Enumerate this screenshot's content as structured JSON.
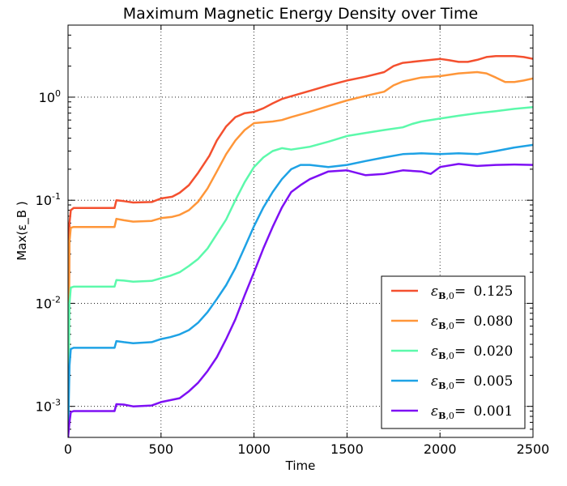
{
  "chart_data": {
    "type": "line",
    "title": "Maximum Magnetic Energy Density over Time",
    "xlabel": "Time",
    "ylabel": "Max(ε_B )",
    "y_scale": "log",
    "xlim": [
      0,
      2500
    ],
    "ylim": [
      0.0005,
      5
    ],
    "grid": true,
    "legend_position": "lower-right",
    "x_ticks": [
      {
        "value": 0,
        "label": "0"
      },
      {
        "value": 500,
        "label": "500"
      },
      {
        "value": 1000,
        "label": "1000"
      },
      {
        "value": 1500,
        "label": "1500"
      },
      {
        "value": 2000,
        "label": "2000"
      },
      {
        "value": 2500,
        "label": "2500"
      }
    ],
    "y_ticks": [
      {
        "value": 0.001,
        "base": "10",
        "exp": "-3"
      },
      {
        "value": 0.01,
        "base": "10",
        "exp": "-2"
      },
      {
        "value": 0.1,
        "base": "10",
        "exp": "-1"
      },
      {
        "value": 1,
        "base": "10",
        "exp": "0"
      }
    ],
    "series": [
      {
        "name": "ε_B,0 = 0.125",
        "legend_value": "0.125",
        "color": "#f4502f",
        "points": [
          [
            0,
            0.0005
          ],
          [
            8,
            0.06
          ],
          [
            15,
            0.08
          ],
          [
            30,
            0.084
          ],
          [
            100,
            0.084
          ],
          [
            250,
            0.084
          ],
          [
            260,
            0.1
          ],
          [
            300,
            0.098
          ],
          [
            350,
            0.095
          ],
          [
            450,
            0.096
          ],
          [
            500,
            0.104
          ],
          [
            560,
            0.108
          ],
          [
            600,
            0.118
          ],
          [
            650,
            0.14
          ],
          [
            700,
            0.185
          ],
          [
            760,
            0.27
          ],
          [
            800,
            0.38
          ],
          [
            850,
            0.52
          ],
          [
            900,
            0.64
          ],
          [
            950,
            0.7
          ],
          [
            1000,
            0.72
          ],
          [
            1050,
            0.78
          ],
          [
            1100,
            0.87
          ],
          [
            1150,
            0.96
          ],
          [
            1200,
            1.02
          ],
          [
            1300,
            1.15
          ],
          [
            1400,
            1.3
          ],
          [
            1500,
            1.45
          ],
          [
            1600,
            1.58
          ],
          [
            1700,
            1.75
          ],
          [
            1750,
            2.0
          ],
          [
            1800,
            2.15
          ],
          [
            1900,
            2.25
          ],
          [
            2000,
            2.35
          ],
          [
            2050,
            2.28
          ],
          [
            2100,
            2.2
          ],
          [
            2150,
            2.2
          ],
          [
            2200,
            2.3
          ],
          [
            2250,
            2.45
          ],
          [
            2300,
            2.5
          ],
          [
            2400,
            2.5
          ],
          [
            2450,
            2.45
          ],
          [
            2500,
            2.35
          ]
        ]
      },
      {
        "name": "ε_B,0 = 0.080",
        "legend_value": "0.080",
        "color": "#ff9639",
        "points": [
          [
            0,
            0.0005
          ],
          [
            8,
            0.04
          ],
          [
            15,
            0.054
          ],
          [
            30,
            0.055
          ],
          [
            100,
            0.055
          ],
          [
            250,
            0.055
          ],
          [
            260,
            0.066
          ],
          [
            300,
            0.064
          ],
          [
            350,
            0.062
          ],
          [
            450,
            0.063
          ],
          [
            500,
            0.067
          ],
          [
            560,
            0.069
          ],
          [
            600,
            0.072
          ],
          [
            650,
            0.08
          ],
          [
            700,
            0.097
          ],
          [
            750,
            0.13
          ],
          [
            800,
            0.19
          ],
          [
            850,
            0.28
          ],
          [
            900,
            0.38
          ],
          [
            950,
            0.48
          ],
          [
            1000,
            0.56
          ],
          [
            1050,
            0.57
          ],
          [
            1100,
            0.58
          ],
          [
            1150,
            0.6
          ],
          [
            1200,
            0.64
          ],
          [
            1300,
            0.72
          ],
          [
            1400,
            0.82
          ],
          [
            1500,
            0.93
          ],
          [
            1600,
            1.03
          ],
          [
            1700,
            1.13
          ],
          [
            1750,
            1.3
          ],
          [
            1800,
            1.42
          ],
          [
            1900,
            1.55
          ],
          [
            2000,
            1.6
          ],
          [
            2100,
            1.7
          ],
          [
            2200,
            1.75
          ],
          [
            2250,
            1.7
          ],
          [
            2300,
            1.55
          ],
          [
            2350,
            1.4
          ],
          [
            2400,
            1.4
          ],
          [
            2450,
            1.45
          ],
          [
            2500,
            1.52
          ]
        ]
      },
      {
        "name": "ε_B,0 = 0.020",
        "legend_value": "0.020",
        "color": "#5cf9ab",
        "points": [
          [
            0,
            0.0005
          ],
          [
            8,
            0.01
          ],
          [
            15,
            0.0142
          ],
          [
            30,
            0.0145
          ],
          [
            100,
            0.0145
          ],
          [
            250,
            0.0145
          ],
          [
            260,
            0.0168
          ],
          [
            300,
            0.0166
          ],
          [
            350,
            0.0162
          ],
          [
            450,
            0.0165
          ],
          [
            500,
            0.0175
          ],
          [
            550,
            0.0185
          ],
          [
            600,
            0.02
          ],
          [
            650,
            0.023
          ],
          [
            700,
            0.027
          ],
          [
            750,
            0.034
          ],
          [
            800,
            0.047
          ],
          [
            850,
            0.065
          ],
          [
            900,
            0.1
          ],
          [
            950,
            0.15
          ],
          [
            1000,
            0.21
          ],
          [
            1050,
            0.26
          ],
          [
            1100,
            0.3
          ],
          [
            1150,
            0.32
          ],
          [
            1200,
            0.31
          ],
          [
            1300,
            0.33
          ],
          [
            1400,
            0.37
          ],
          [
            1500,
            0.42
          ],
          [
            1600,
            0.45
          ],
          [
            1700,
            0.48
          ],
          [
            1800,
            0.51
          ],
          [
            1850,
            0.55
          ],
          [
            1900,
            0.58
          ],
          [
            2000,
            0.62
          ],
          [
            2100,
            0.66
          ],
          [
            2200,
            0.7
          ],
          [
            2300,
            0.73
          ],
          [
            2400,
            0.77
          ],
          [
            2500,
            0.8
          ]
        ]
      },
      {
        "name": "ε_B,0 = 0.005",
        "legend_value": "0.005",
        "color": "#1ea2e5",
        "points": [
          [
            0,
            0.0005
          ],
          [
            8,
            0.0025
          ],
          [
            15,
            0.0036
          ],
          [
            30,
            0.0037
          ],
          [
            100,
            0.0037
          ],
          [
            250,
            0.0037
          ],
          [
            260,
            0.0043
          ],
          [
            300,
            0.0042
          ],
          [
            350,
            0.0041
          ],
          [
            450,
            0.0042
          ],
          [
            500,
            0.0045
          ],
          [
            550,
            0.0047
          ],
          [
            600,
            0.005
          ],
          [
            650,
            0.0055
          ],
          [
            700,
            0.0065
          ],
          [
            750,
            0.0082
          ],
          [
            800,
            0.011
          ],
          [
            850,
            0.015
          ],
          [
            900,
            0.022
          ],
          [
            950,
            0.035
          ],
          [
            1000,
            0.056
          ],
          [
            1050,
            0.085
          ],
          [
            1100,
            0.12
          ],
          [
            1150,
            0.16
          ],
          [
            1200,
            0.2
          ],
          [
            1250,
            0.22
          ],
          [
            1300,
            0.22
          ],
          [
            1400,
            0.21
          ],
          [
            1500,
            0.22
          ],
          [
            1600,
            0.24
          ],
          [
            1700,
            0.26
          ],
          [
            1800,
            0.28
          ],
          [
            1900,
            0.285
          ],
          [
            2000,
            0.28
          ],
          [
            2100,
            0.285
          ],
          [
            2200,
            0.28
          ],
          [
            2300,
            0.3
          ],
          [
            2400,
            0.325
          ],
          [
            2500,
            0.345
          ]
        ]
      },
      {
        "name": "ε_B,0 = 0.001",
        "legend_value": "0.001",
        "color": "#7e10f4",
        "points": [
          [
            0,
            0.0005
          ],
          [
            8,
            0.0007
          ],
          [
            15,
            0.00088
          ],
          [
            30,
            0.0009
          ],
          [
            100,
            0.0009
          ],
          [
            250,
            0.0009
          ],
          [
            260,
            0.00105
          ],
          [
            300,
            0.00104
          ],
          [
            350,
            0.001
          ],
          [
            450,
            0.00102
          ],
          [
            500,
            0.0011
          ],
          [
            550,
            0.00115
          ],
          [
            600,
            0.0012
          ],
          [
            650,
            0.0014
          ],
          [
            700,
            0.0017
          ],
          [
            750,
            0.0022
          ],
          [
            800,
            0.003
          ],
          [
            850,
            0.0045
          ],
          [
            900,
            0.007
          ],
          [
            950,
            0.012
          ],
          [
            1000,
            0.02
          ],
          [
            1050,
            0.034
          ],
          [
            1100,
            0.055
          ],
          [
            1150,
            0.085
          ],
          [
            1200,
            0.12
          ],
          [
            1250,
            0.14
          ],
          [
            1300,
            0.16
          ],
          [
            1400,
            0.19
          ],
          [
            1500,
            0.195
          ],
          [
            1600,
            0.175
          ],
          [
            1700,
            0.18
          ],
          [
            1800,
            0.195
          ],
          [
            1900,
            0.19
          ],
          [
            1950,
            0.18
          ],
          [
            2000,
            0.21
          ],
          [
            2100,
            0.225
          ],
          [
            2200,
            0.215
          ],
          [
            2300,
            0.22
          ],
          [
            2400,
            0.222
          ],
          [
            2500,
            0.22
          ]
        ]
      }
    ]
  }
}
